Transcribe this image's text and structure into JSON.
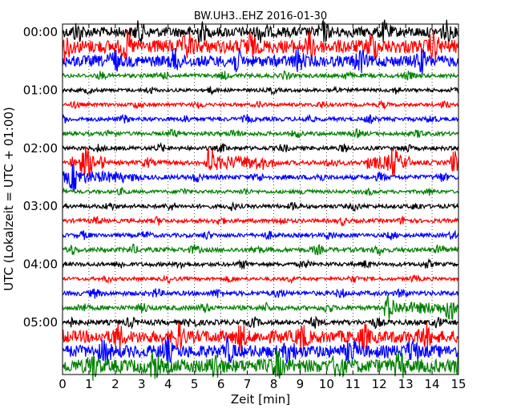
{
  "chart_data": {
    "type": "line",
    "title": "BW.UH3..EHZ 2016-01-30",
    "xlabel": "Zeit  [min]",
    "ylabel": "UTC (Lokalzeit = UTC + 01:00)",
    "xlim": [
      0,
      15
    ],
    "x_ticks": [
      "0",
      "1",
      "2",
      "3",
      "4",
      "5",
      "6",
      "7",
      "8",
      "9",
      "10",
      "11",
      "12",
      "13",
      "14",
      "15"
    ],
    "y_tick_labels": [
      {
        "row": 0,
        "label": "00:00"
      },
      {
        "row": 4,
        "label": "01:00"
      },
      {
        "row": 8,
        "label": "02:00"
      },
      {
        "row": 12,
        "label": "03:00"
      },
      {
        "row": 16,
        "label": "04:00"
      },
      {
        "row": 20,
        "label": "05:00"
      }
    ],
    "grid": "vertical dotted",
    "trace_colors": [
      "#000000",
      "#ff0000",
      "#0000ff",
      "#008000"
    ],
    "traces": [
      {
        "start": "00:00",
        "amplitude": 0.9
      },
      {
        "start": "00:15",
        "amplitude": 1.2
      },
      {
        "start": "00:30",
        "amplitude": 1.0
      },
      {
        "start": "00:45",
        "amplitude": 0.35
      },
      {
        "start": "01:00",
        "amplitude": 0.3
      },
      {
        "start": "01:15",
        "amplitude": 0.3
      },
      {
        "start": "01:30",
        "amplitude": 0.35
      },
      {
        "start": "01:45",
        "amplitude": 0.35
      },
      {
        "start": "02:00",
        "amplitude": 0.35
      },
      {
        "start": "02:15",
        "amplitude": 0.4
      },
      {
        "start": "02:30",
        "amplitude": 0.4
      },
      {
        "start": "02:45",
        "amplitude": 0.3
      },
      {
        "start": "03:00",
        "amplitude": 0.35
      },
      {
        "start": "03:15",
        "amplitude": 0.35
      },
      {
        "start": "03:30",
        "amplitude": 0.35
      },
      {
        "start": "03:45",
        "amplitude": 0.4
      },
      {
        "start": "04:00",
        "amplitude": 0.35
      },
      {
        "start": "04:15",
        "amplitude": 0.3
      },
      {
        "start": "04:30",
        "amplitude": 0.4
      },
      {
        "start": "04:45",
        "amplitude": 0.4
      },
      {
        "start": "05:00",
        "amplitude": 0.45
      },
      {
        "start": "05:15",
        "amplitude": 1.1
      },
      {
        "start": "05:30",
        "amplitude": 1.1
      },
      {
        "start": "05:45",
        "amplitude": 1.2
      }
    ]
  }
}
